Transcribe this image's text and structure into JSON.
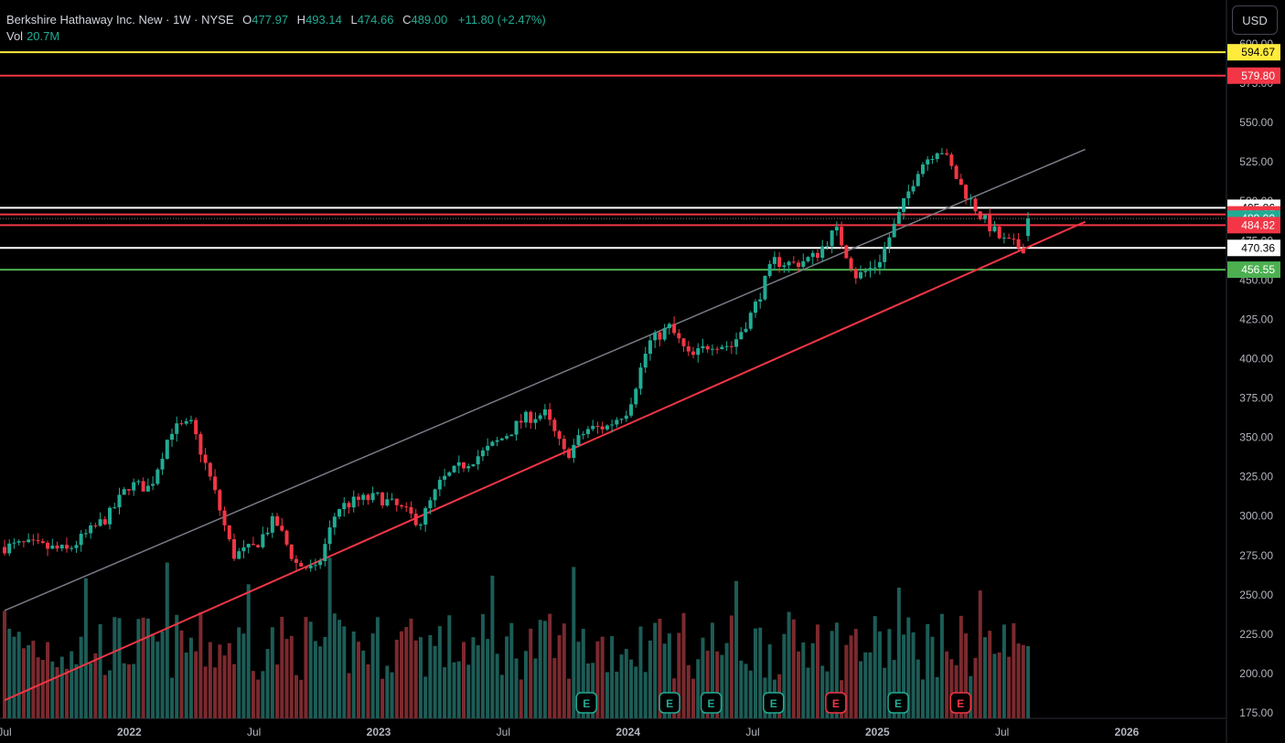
{
  "header": {
    "symbol": "Berkshire Hathaway Inc. New · 1W · NYSE",
    "o_label": "O",
    "o": "477.97",
    "h_label": "H",
    "h": "493.14",
    "l_label": "L",
    "l": "474.66",
    "c_label": "C",
    "c": "489.00",
    "change": "+11.80 (+2.47%)",
    "vol_label": "Vol",
    "vol": "20.7M"
  },
  "currency_button": "USD",
  "colors": {
    "up": "#22ab94",
    "down": "#f23645",
    "volume_up": "#1d5c56",
    "volume_down": "#7a2a2e",
    "yellow_line": "#ffeb3b",
    "red_line": "#f23645",
    "green_line": "#4caf50",
    "white_line": "#ffffff",
    "channel": "#787b86",
    "earnings": "#b33c41",
    "earnings_up": "#1c6c63"
  },
  "chart_data": {
    "type": "candlestick",
    "interval": "1W",
    "y_axis": {
      "min": 175,
      "max": 600,
      "scale": "linear",
      "ticks": [
        175,
        200,
        225,
        250,
        275,
        300,
        325,
        350,
        375,
        400,
        425,
        450,
        475,
        500,
        525,
        550,
        575,
        600
      ],
      "tick_labels": [
        "175.00",
        "200.00",
        "225.00",
        "250.00",
        "275.00",
        "300.00",
        "325.00",
        "350.00",
        "375.00",
        "400.00",
        "425.00",
        "450.00",
        "475.00",
        "500.00",
        "525.00",
        "550.00",
        "575.00",
        "600.00"
      ]
    },
    "x_axis": {
      "labels": [
        "Jul",
        "2022",
        "Jul",
        "2023",
        "Jul",
        "2024",
        "Jul",
        "2025",
        "Jul",
        "2026"
      ],
      "label_dates": [
        "2021-07",
        "2022-01",
        "2022-07",
        "2023-01",
        "2023-07",
        "2024-01",
        "2024-07",
        "2025-01",
        "2025-07",
        "2026-01"
      ]
    },
    "anchors": [
      [
        "2021-08",
        282
      ],
      [
        "2021-10",
        278
      ],
      [
        "2021-12",
        300
      ],
      [
        "2022-01",
        320
      ],
      [
        "2022-02",
        318
      ],
      [
        "2022-03",
        355
      ],
      [
        "2022-04",
        358
      ],
      [
        "2022-05",
        320
      ],
      [
        "2022-06",
        275
      ],
      [
        "2022-07",
        280
      ],
      [
        "2022-08",
        298
      ],
      [
        "2022-09",
        270
      ],
      [
        "2022-10",
        265
      ],
      [
        "2022-11",
        305
      ],
      [
        "2022-12",
        310
      ],
      [
        "2023-01",
        312
      ],
      [
        "2023-02",
        305
      ],
      [
        "2023-03",
        296
      ],
      [
        "2023-04",
        322
      ],
      [
        "2023-05",
        332
      ],
      [
        "2023-06",
        340
      ],
      [
        "2023-07",
        350
      ],
      [
        "2023-08",
        362
      ],
      [
        "2023-09",
        365
      ],
      [
        "2023-10",
        338
      ],
      [
        "2023-11",
        355
      ],
      [
        "2023-12",
        357
      ],
      [
        "2024-01",
        368
      ],
      [
        "2024-02",
        410
      ],
      [
        "2024-03",
        420
      ],
      [
        "2024-04",
        400
      ],
      [
        "2024-05",
        410
      ],
      [
        "2024-06",
        408
      ],
      [
        "2024-07",
        430
      ],
      [
        "2024-08",
        462
      ],
      [
        "2024-09",
        460
      ],
      [
        "2024-10",
        465
      ],
      [
        "2024-11",
        482
      ],
      [
        "2024-12",
        452
      ],
      [
        "2025-01",
        460
      ],
      [
        "2025-02",
        490
      ],
      [
        "2025-03",
        522
      ],
      [
        "2025-04",
        535
      ],
      [
        "2025-05",
        510
      ],
      [
        "2025-06",
        490
      ],
      [
        "2025-07",
        475
      ],
      [
        "2025-08",
        470
      ],
      [
        "2025-08-15",
        489
      ]
    ],
    "volume_axis_note": "volume histogram bars at bottom, no axis",
    "horizontal_levels": [
      {
        "price": 594.67,
        "label": "594.67",
        "color": "#ffeb3b"
      },
      {
        "price": 579.8,
        "label": "579.80",
        "color": "#f23645"
      },
      {
        "price": 495.86,
        "label": "495.86",
        "color": "#ffffff"
      },
      {
        "price": 491.67,
        "label": "491.67",
        "color": "#f23645"
      },
      {
        "price": 489.0,
        "label": "489.00",
        "color": "#22ab94"
      },
      {
        "price": 484.82,
        "label": "484.82",
        "color": "#f23645"
      },
      {
        "price": 470.36,
        "label": "470.36",
        "color": "#ffffff"
      },
      {
        "price": 456.55,
        "label": "456.55",
        "color": "#4caf50"
      }
    ],
    "trendlines": [
      {
        "name": "",
        "color": "#f23645",
        "from": [
          "2021-07",
          183
        ],
        "to": [
          "2025-11",
          487
        ]
      },
      {
        "name": "",
        "color": "#787b86",
        "from": [
          "2021-07",
          240
        ],
        "to": [
          "2025-11",
          533
        ]
      }
    ],
    "earnings_markers": [
      {
        "date": "2023-11",
        "kind": "up",
        "label": "E"
      },
      {
        "date": "2024-03",
        "kind": "up",
        "label": "E"
      },
      {
        "date": "2024-05",
        "kind": "up",
        "label": "E"
      },
      {
        "date": "2024-08",
        "kind": "up",
        "label": "E"
      },
      {
        "date": "2024-11",
        "kind": "down",
        "label": "E"
      },
      {
        "date": "2025-02",
        "kind": "up",
        "label": "E"
      },
      {
        "date": "2025-05",
        "kind": "down",
        "label": "E"
      }
    ]
  }
}
